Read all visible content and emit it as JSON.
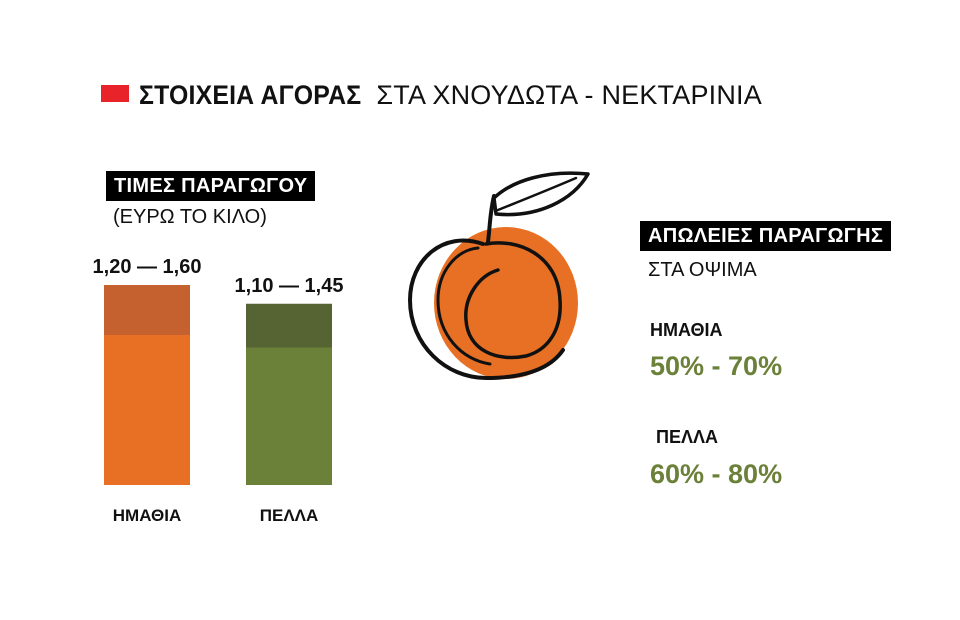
{
  "header": {
    "title_bold": "ΣΤΟΙΧΕΙΑ ΑΓΟΡΑΣ",
    "title_rest": "ΣΤΑ ΧΝΟΥΔΩΤΑ - ΝΕΚΤΑΡΙΝΙΑ",
    "marker_color": "#e8232a"
  },
  "prices": {
    "label": "ΤΙΜΕΣ ΠΑΡΑΓΩΓΟΥ",
    "unit": "(ΕΥΡΩ ΤΟ ΚΙΛΟ)"
  },
  "chart_data": {
    "type": "bar",
    "subtype": "range",
    "categories": [
      "ΗΜΑΘΙΑ",
      "ΠΕΛΛΑ"
    ],
    "ranges": [
      {
        "min": 1.2,
        "max": 1.6,
        "label": "1,20 — 1,60"
      },
      {
        "min": 1.1,
        "max": 1.45,
        "label": "1,10 — 1,45"
      }
    ],
    "colors": [
      {
        "base": "#e87024",
        "range": "#c5612f"
      },
      {
        "base": "#6b8038",
        "range": "#566332"
      }
    ],
    "ylim": [
      0,
      1.6
    ],
    "grid": false,
    "legend": "none"
  },
  "losses": {
    "label": "ΑΠΩΛΕΙΕΣ ΠΑΡΑΓΩΓΗΣ",
    "subtitle": "ΣΤΑ ΟΨΙΜΑ",
    "value_color": "#6b8038",
    "items": [
      {
        "region": "ΗΜΑΘΙΑ",
        "value": "50% - 70%"
      },
      {
        "region": "ΠΕΛΛΑ",
        "value": "60% - 80%"
      }
    ]
  },
  "illustration": {
    "icon": "peach-icon",
    "fill_color": "#e87024",
    "stroke_color": "#111111"
  }
}
